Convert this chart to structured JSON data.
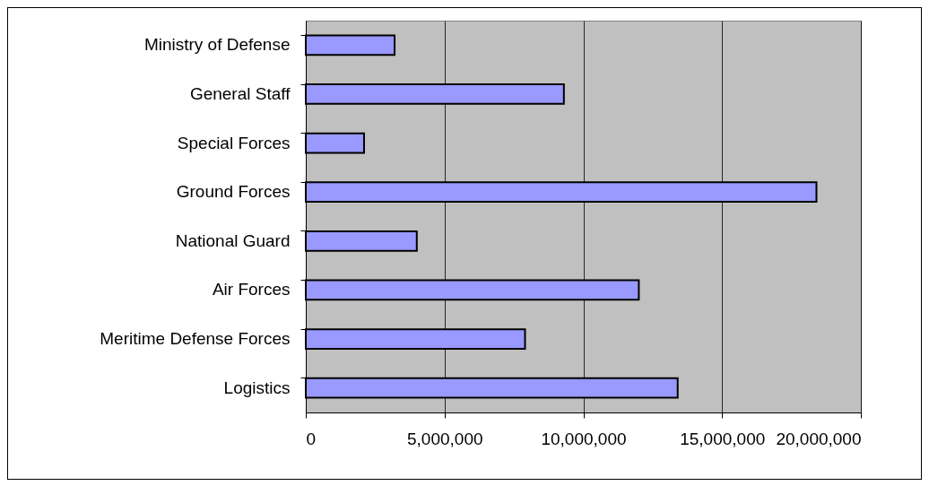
{
  "chart_data": {
    "type": "bar",
    "orientation": "horizontal",
    "categories": [
      "Ministry of Defense",
      "General Staff",
      "Special Forces",
      "Ground Forces",
      "National Guard",
      "Air Forces",
      "Meritime Defense Forces",
      "Logistics"
    ],
    "values": [
      3200000,
      9300000,
      2100000,
      18400000,
      4000000,
      12000000,
      7900000,
      13400000
    ],
    "color": "#9999ff",
    "xlim": [
      0,
      20000000
    ],
    "xticks": [
      0,
      {
        "value": 5000000,
        "label": "5,000,000"
      },
      {
        "value": 10000000,
        "label": "10,000,000"
      },
      {
        "value": 15000000,
        "label": "15,000,000"
      },
      {
        "value": 20000000,
        "label": "20,000,000"
      }
    ],
    "grid": "x"
  }
}
